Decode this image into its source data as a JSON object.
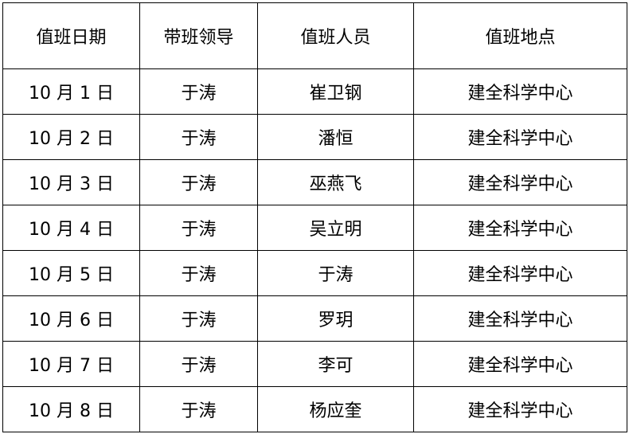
{
  "headers": [
    "值班日期",
    "带班领导",
    "值班人员",
    "值班地点"
  ],
  "rows": [
    [
      "10 月 1 日",
      "于涛",
      "崔卫钢",
      "建全科学中心"
    ],
    [
      "10 月 2 日",
      "于涛",
      "潘恒",
      "建全科学中心"
    ],
    [
      "10 月 3 日",
      "于涛",
      "巫燕飞",
      "建全科学中心"
    ],
    [
      "10 月 4 日",
      "于涛",
      "吴立明",
      "建全科学中心"
    ],
    [
      "10 月 5 日",
      "于涛",
      "于涛",
      "建全科学中心"
    ],
    [
      "10 月 6 日",
      "于涛",
      "罗玥",
      "建全科学中心"
    ],
    [
      "10 月 7 日",
      "于涛",
      "李可",
      "建全科学中心"
    ],
    [
      "10 月 8 日",
      "于涛",
      "杨应奎",
      "建全科学中心"
    ]
  ]
}
